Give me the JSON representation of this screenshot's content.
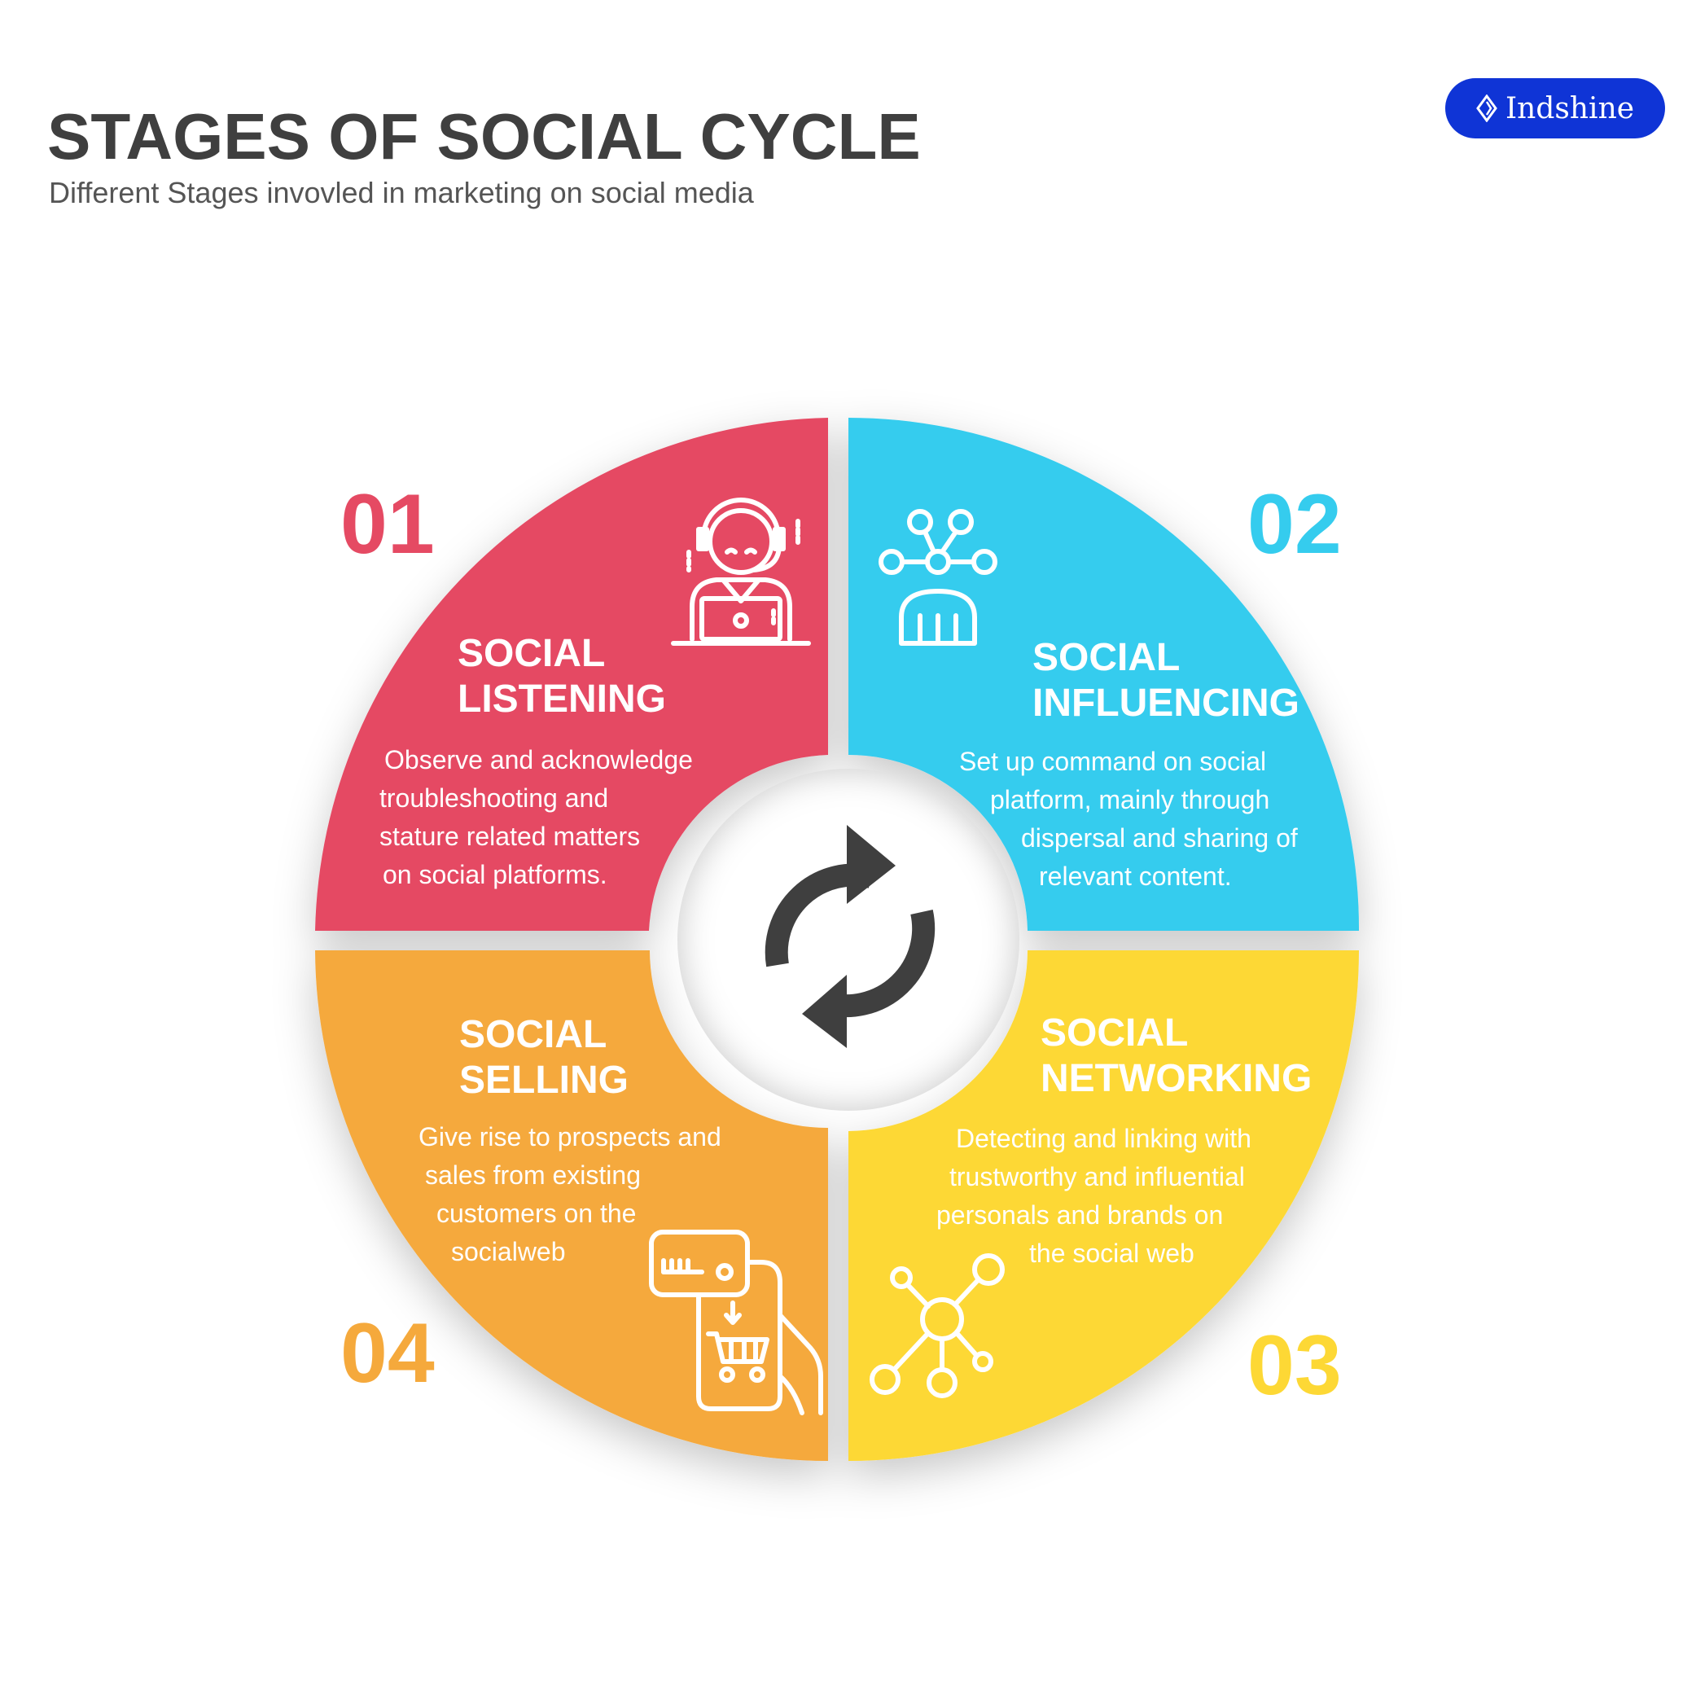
{
  "header": {
    "title": "STAGES OF SOCIAL CYCLE",
    "subtitle": "Different Stages invovled in marketing on social media"
  },
  "brand": {
    "name": "Indshine",
    "color": "#0f34d6"
  },
  "center": {
    "icon": "refresh-cycle-icon"
  },
  "stages": [
    {
      "number": "01",
      "title_lines": [
        "SOCIAL",
        "LISTENING"
      ],
      "desc_lines": [
        "Observe and acknowledge",
        "troubleshooting and",
        "stature related matters",
        "on social platforms."
      ],
      "color": "#e54a63",
      "icon": "customer-support-agent-icon"
    },
    {
      "number": "02",
      "title_lines": [
        "SOCIAL",
        "INFLUENCING"
      ],
      "desc_lines": [
        "Set up command on social",
        "platform, mainly through",
        "dispersal and sharing of",
        "relevant content."
      ],
      "color": "#35ccee",
      "icon": "influencer-network-icon"
    },
    {
      "number": "03",
      "title_lines": [
        "SOCIAL",
        "NETWORKING"
      ],
      "desc_lines": [
        "Detecting and linking with",
        "trustworthy and influential",
        "personals and brands on",
        "the social web"
      ],
      "color": "#fdd835",
      "icon": "network-nodes-icon"
    },
    {
      "number": "04",
      "title_lines": [
        "SOCIAL",
        "SELLING"
      ],
      "desc_lines": [
        "Give rise to prospects and",
        "sales from existing",
        "customers on the",
        "socialweb"
      ],
      "color": "#f5a93c",
      "icon": "mobile-shopping-icon"
    }
  ]
}
